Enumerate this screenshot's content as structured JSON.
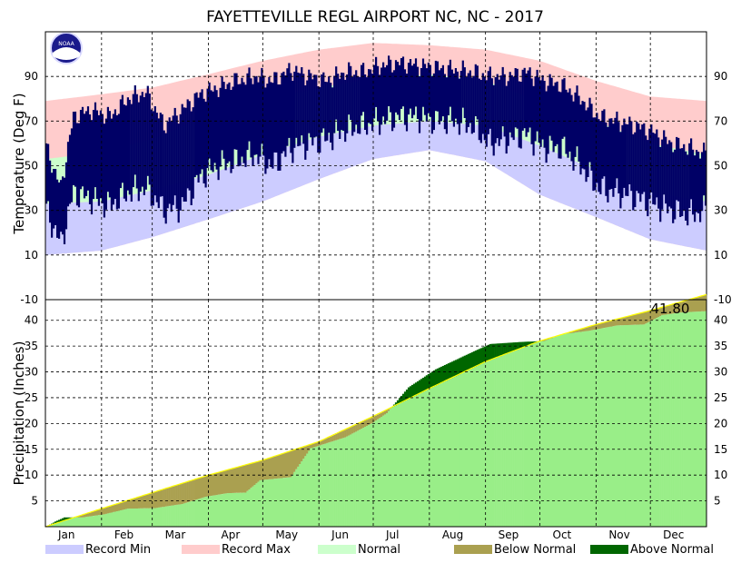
{
  "chart_data": [
    {
      "type": "area",
      "panel": "temperature",
      "title": "FAYETTEVILLE REGL AIRPORT NC, NC - 2017",
      "ylabel": "Temperature (Deg F)",
      "y_ticks": [
        "-10",
        "10",
        "30",
        "50",
        "70",
        "90"
      ],
      "ylim": [
        -10,
        110
      ],
      "grid": true,
      "normal_band": [
        {
          "doy": 0,
          "low": 33,
          "high": 53
        },
        {
          "doy": 31,
          "low": 34,
          "high": 56
        },
        {
          "doy": 59,
          "low": 39,
          "high": 62
        },
        {
          "doy": 90,
          "low": 46,
          "high": 72
        },
        {
          "doy": 120,
          "low": 55,
          "high": 79
        },
        {
          "doy": 151,
          "low": 63,
          "high": 85
        },
        {
          "doy": 181,
          "low": 68,
          "high": 89
        },
        {
          "doy": 212,
          "low": 70,
          "high": 91
        },
        {
          "doy": 243,
          "low": 68,
          "high": 88
        },
        {
          "doy": 273,
          "low": 59,
          "high": 79
        },
        {
          "doy": 304,
          "low": 48,
          "high": 70
        },
        {
          "doy": 334,
          "low": 38,
          "high": 60
        },
        {
          "doy": 365,
          "low": 34,
          "high": 55
        }
      ],
      "record_band": [
        {
          "doy": 0,
          "min": 10,
          "max": 79
        },
        {
          "doy": 31,
          "min": 12,
          "max": 82
        },
        {
          "doy": 59,
          "min": 18,
          "max": 85
        },
        {
          "doy": 90,
          "min": 26,
          "max": 91
        },
        {
          "doy": 120,
          "min": 34,
          "max": 97
        },
        {
          "doy": 151,
          "min": 44,
          "max": 102
        },
        {
          "doy": 181,
          "min": 53,
          "max": 105
        },
        {
          "doy": 212,
          "min": 57,
          "max": 104
        },
        {
          "doy": 243,
          "min": 52,
          "max": 102
        },
        {
          "doy": 273,
          "min": 37,
          "max": 97
        },
        {
          "doy": 304,
          "min": 27,
          "max": 88
        },
        {
          "doy": 334,
          "min": 17,
          "max": 81
        },
        {
          "doy": 365,
          "min": 12,
          "max": 79
        }
      ],
      "observed_daily_range": [
        {
          "doy": 0,
          "low": 30,
          "high": 58
        },
        {
          "doy": 8,
          "low": 15,
          "high": 40
        },
        {
          "doy": 15,
          "low": 38,
          "high": 72
        },
        {
          "doy": 25,
          "low": 35,
          "high": 75
        },
        {
          "doy": 35,
          "low": 32,
          "high": 72
        },
        {
          "doy": 45,
          "low": 38,
          "high": 80
        },
        {
          "doy": 55,
          "low": 40,
          "high": 83
        },
        {
          "doy": 65,
          "low": 30,
          "high": 68
        },
        {
          "doy": 75,
          "low": 32,
          "high": 75
        },
        {
          "doy": 85,
          "low": 45,
          "high": 82
        },
        {
          "doy": 95,
          "low": 50,
          "high": 85
        },
        {
          "doy": 105,
          "low": 52,
          "high": 88
        },
        {
          "doy": 115,
          "low": 55,
          "high": 90
        },
        {
          "doy": 125,
          "low": 50,
          "high": 88
        },
        {
          "doy": 135,
          "low": 58,
          "high": 93
        },
        {
          "doy": 145,
          "low": 60,
          "high": 90
        },
        {
          "doy": 155,
          "low": 62,
          "high": 88
        },
        {
          "doy": 165,
          "low": 66,
          "high": 92
        },
        {
          "doy": 175,
          "low": 68,
          "high": 92
        },
        {
          "doy": 185,
          "low": 70,
          "high": 95
        },
        {
          "doy": 195,
          "low": 72,
          "high": 96
        },
        {
          "doy": 205,
          "low": 72,
          "high": 95
        },
        {
          "doy": 215,
          "low": 70,
          "high": 94
        },
        {
          "doy": 225,
          "low": 70,
          "high": 93
        },
        {
          "doy": 235,
          "low": 68,
          "high": 92
        },
        {
          "doy": 245,
          "low": 60,
          "high": 90
        },
        {
          "doy": 255,
          "low": 62,
          "high": 90
        },
        {
          "doy": 265,
          "low": 64,
          "high": 92
        },
        {
          "doy": 275,
          "low": 58,
          "high": 88
        },
        {
          "doy": 285,
          "low": 58,
          "high": 86
        },
        {
          "doy": 295,
          "low": 50,
          "high": 80
        },
        {
          "doy": 305,
          "low": 40,
          "high": 72
        },
        {
          "doy": 315,
          "low": 38,
          "high": 70
        },
        {
          "doy": 325,
          "low": 36,
          "high": 68
        },
        {
          "doy": 335,
          "low": 33,
          "high": 65
        },
        {
          "doy": 345,
          "low": 30,
          "high": 60
        },
        {
          "doy": 355,
          "low": 28,
          "high": 58
        },
        {
          "doy": 365,
          "low": 30,
          "high": 55
        }
      ]
    },
    {
      "type": "area",
      "panel": "precipitation",
      "ylabel": "Precipitation (Inches)",
      "y_ticks": [
        "5",
        "10",
        "15",
        "20",
        "25",
        "30",
        "35",
        "40"
      ],
      "ylim": [
        0,
        44
      ],
      "grid": true,
      "x_tick_labels": [
        "Jan",
        "Feb",
        "Mar",
        "Apr",
        "May",
        "Jun",
        "Jul",
        "Aug",
        "Sep",
        "Oct",
        "Nov",
        "Dec"
      ],
      "annotation": "41.80",
      "normal_cumulative": [
        {
          "doy": 0,
          "value": 0
        },
        {
          "doy": 31,
          "value": 3.5
        },
        {
          "doy": 59,
          "value": 6.6
        },
        {
          "doy": 90,
          "value": 10.0
        },
        {
          "doy": 120,
          "value": 12.9
        },
        {
          "doy": 151,
          "value": 16.5
        },
        {
          "doy": 181,
          "value": 21.4
        },
        {
          "doy": 212,
          "value": 26.8
        },
        {
          "doy": 243,
          "value": 32.0
        },
        {
          "doy": 273,
          "value": 36.0
        },
        {
          "doy": 304,
          "value": 39.2
        },
        {
          "doy": 334,
          "value": 41.9
        },
        {
          "doy": 365,
          "value": 45.0
        }
      ],
      "observed_cumulative": [
        {
          "doy": 0,
          "value": 0
        },
        {
          "doy": 5,
          "value": 1.0
        },
        {
          "doy": 10,
          "value": 1.8
        },
        {
          "doy": 20,
          "value": 1.8
        },
        {
          "doy": 32,
          "value": 2.4
        },
        {
          "doy": 45,
          "value": 3.5
        },
        {
          "doy": 60,
          "value": 3.6
        },
        {
          "doy": 75,
          "value": 4.4
        },
        {
          "doy": 88,
          "value": 5.8
        },
        {
          "doy": 100,
          "value": 6.5
        },
        {
          "doy": 110,
          "value": 6.6
        },
        {
          "doy": 118,
          "value": 9.0
        },
        {
          "doy": 135,
          "value": 9.6
        },
        {
          "doy": 146,
          "value": 15.2
        },
        {
          "doy": 165,
          "value": 17.3
        },
        {
          "doy": 180,
          "value": 20.1
        },
        {
          "doy": 188,
          "value": 22.0
        },
        {
          "doy": 200,
          "value": 27.0
        },
        {
          "doy": 215,
          "value": 30.5
        },
        {
          "doy": 235,
          "value": 33.8
        },
        {
          "doy": 245,
          "value": 35.4
        },
        {
          "doy": 262,
          "value": 35.8
        },
        {
          "doy": 275,
          "value": 36.0
        },
        {
          "doy": 285,
          "value": 37.3
        },
        {
          "doy": 300,
          "value": 38.0
        },
        {
          "doy": 315,
          "value": 39.0
        },
        {
          "doy": 330,
          "value": 39.2
        },
        {
          "doy": 340,
          "value": 41.0
        },
        {
          "doy": 350,
          "value": 41.5
        },
        {
          "doy": 365,
          "value": 41.8
        }
      ]
    }
  ],
  "legend": [
    {
      "label": "Record Min",
      "color": "#ccccff"
    },
    {
      "label": "Record Max",
      "color": "#ffcccc"
    },
    {
      "label": "Normal",
      "color": "#ccffcc"
    },
    {
      "label": "Below Normal",
      "color": "#aaa050"
    },
    {
      "label": "Above Normal",
      "color": "#006600"
    }
  ],
  "colors": {
    "observed": "#000066",
    "precip_fill": "#99ee88",
    "normal_line": "#ffff00"
  },
  "logo": {
    "text": "NOAA",
    "icon": "noaa-logo-icon"
  }
}
